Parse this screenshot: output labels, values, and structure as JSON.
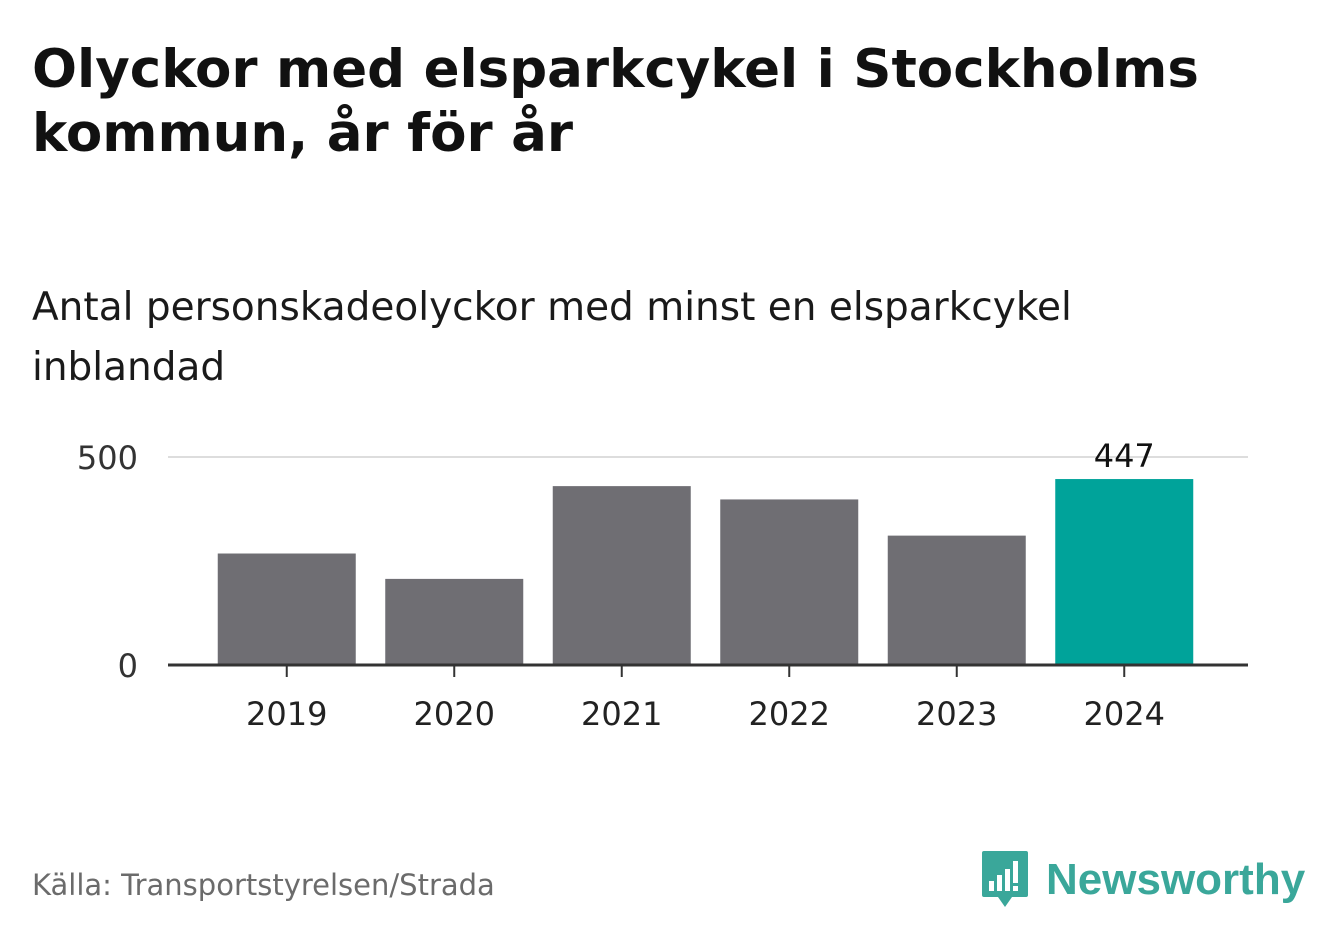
{
  "header": {
    "title": "Olyckor med elsparkcykel i Stockholms kommun, år för år",
    "subtitle": "Antal personskadeolyckor med minst en elsparkcykel inblandad"
  },
  "chart_data": {
    "type": "bar",
    "categories": [
      "2019",
      "2020",
      "2021",
      "2022",
      "2023",
      "2024"
    ],
    "values": [
      268,
      207,
      430,
      398,
      311,
      447
    ],
    "value_labels": [
      "",
      "",
      "",
      "",
      "",
      "447"
    ],
    "y_ticks": [
      "0",
      "500"
    ],
    "ylim": [
      0,
      500
    ],
    "grid": true,
    "colors": {
      "default_bar": "#6f6e73",
      "highlight_bar": "#00a39a",
      "gridline": "#dddddd",
      "axis": "#333333"
    },
    "highlight_index": 5
  },
  "footer": {
    "source": "Källa: Transportstyrelsen/Strada",
    "brand": "Newsworthy",
    "brand_color": "#3aa79a",
    "brand_icon": "newsworthy-logo-icon"
  }
}
